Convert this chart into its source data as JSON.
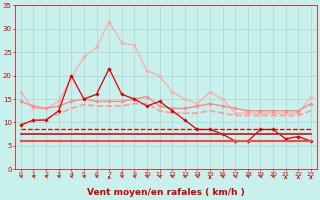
{
  "background_color": "#c8f0ec",
  "grid_color": "#aed4d0",
  "xlabel": "Vent moyen/en rafales ( km/h )",
  "xlabel_color": "#cc0000",
  "xlabel_fontsize": 6.5,
  "tick_color": "#cc0000",
  "xlim": [
    -0.5,
    23.5
  ],
  "ylim": [
    0,
    35
  ],
  "yticks": [
    0,
    5,
    10,
    15,
    20,
    25,
    30,
    35
  ],
  "xticks": [
    0,
    1,
    2,
    3,
    4,
    5,
    6,
    7,
    8,
    9,
    10,
    11,
    12,
    13,
    14,
    15,
    16,
    17,
    18,
    19,
    20,
    21,
    22,
    23
  ],
  "series": [
    {
      "x": [
        0,
        1,
        2,
        3,
        4,
        5,
        6,
        7,
        8,
        9,
        10,
        11,
        12,
        13,
        14,
        15,
        16,
        17,
        18,
        19,
        20,
        21,
        22,
        23
      ],
      "y": [
        16.5,
        13.0,
        13.0,
        14.5,
        19.5,
        24.0,
        26.0,
        31.5,
        27.0,
        26.5,
        21.0,
        20.0,
        16.5,
        15.0,
        14.0,
        16.5,
        15.0,
        12.0,
        12.0,
        12.0,
        12.0,
        12.0,
        12.0,
        15.5
      ],
      "color": "#ffaaaa",
      "linewidth": 0.9,
      "marker": "D",
      "markersize": 1.8,
      "linestyle": "-"
    },
    {
      "x": [
        0,
        1,
        2,
        3,
        4,
        5,
        6,
        7,
        8,
        9,
        10,
        11,
        12,
        13,
        14,
        15,
        16,
        17,
        18,
        19,
        20,
        21,
        22,
        23
      ],
      "y": [
        14.5,
        13.5,
        13.0,
        13.5,
        14.5,
        15.0,
        14.5,
        14.5,
        14.5,
        15.0,
        15.5,
        13.5,
        13.0,
        13.0,
        13.5,
        14.0,
        13.5,
        13.0,
        12.5,
        12.5,
        12.5,
        12.5,
        12.5,
        14.0
      ],
      "color": "#ff8888",
      "linewidth": 1.0,
      "marker": "D",
      "markersize": 1.8,
      "linestyle": "-"
    },
    {
      "x": [
        0,
        1,
        2,
        3,
        4,
        5,
        6,
        7,
        8,
        9,
        10,
        11,
        12,
        13,
        14,
        15,
        16,
        17,
        18,
        19,
        20,
        21,
        22,
        23
      ],
      "y": [
        9.5,
        10.2,
        10.8,
        11.8,
        13.0,
        13.8,
        13.5,
        13.5,
        13.5,
        14.0,
        14.0,
        12.5,
        12.0,
        12.0,
        12.0,
        12.5,
        12.0,
        11.5,
        11.5,
        11.5,
        11.5,
        11.5,
        11.5,
        12.5
      ],
      "color": "#ff9999",
      "linewidth": 1.2,
      "marker": null,
      "markersize": 0,
      "linestyle": "--"
    },
    {
      "x": [
        0,
        1,
        2,
        3,
        4,
        5,
        6,
        7,
        8,
        9,
        10,
        11,
        12,
        13,
        14,
        15,
        16,
        17,
        18,
        19,
        20,
        21,
        22,
        23
      ],
      "y": [
        9.5,
        10.5,
        10.5,
        12.5,
        20.0,
        15.0,
        16.0,
        21.5,
        16.0,
        15.0,
        13.5,
        14.5,
        12.5,
        10.5,
        8.5,
        8.5,
        7.5,
        6.0,
        6.0,
        8.5,
        8.5,
        6.5,
        7.0,
        6.0
      ],
      "color": "#dd0000",
      "linewidth": 0.9,
      "marker": "D",
      "markersize": 1.8,
      "linestyle": "-"
    },
    {
      "x": [
        0,
        1,
        2,
        3,
        4,
        5,
        6,
        7,
        8,
        9,
        10,
        11,
        12,
        13,
        14,
        15,
        16,
        17,
        18,
        19,
        20,
        21,
        22,
        23
      ],
      "y": [
        8.5,
        8.5,
        8.5,
        8.5,
        8.5,
        8.5,
        8.5,
        8.5,
        8.5,
        8.5,
        8.5,
        8.5,
        8.5,
        8.5,
        8.5,
        8.5,
        8.5,
        8.5,
        8.5,
        8.5,
        8.5,
        8.5,
        8.5,
        8.5
      ],
      "color": "#cc0000",
      "linewidth": 0.9,
      "marker": null,
      "markersize": 0,
      "linestyle": "--"
    },
    {
      "x": [
        0,
        1,
        2,
        3,
        4,
        5,
        6,
        7,
        8,
        9,
        10,
        11,
        12,
        13,
        14,
        15,
        16,
        17,
        18,
        19,
        20,
        21,
        22,
        23
      ],
      "y": [
        7.5,
        7.5,
        7.5,
        7.5,
        7.5,
        7.5,
        7.5,
        7.5,
        7.5,
        7.5,
        7.5,
        7.5,
        7.5,
        7.5,
        7.5,
        7.5,
        7.5,
        7.5,
        7.5,
        7.5,
        7.5,
        7.5,
        7.5,
        7.5
      ],
      "color": "#cc2222",
      "linewidth": 1.3,
      "marker": null,
      "markersize": 0,
      "linestyle": "-"
    },
    {
      "x": [
        0,
        1,
        2,
        3,
        4,
        5,
        6,
        7,
        8,
        9,
        10,
        11,
        12,
        13,
        14,
        15,
        16,
        17,
        18,
        19,
        20,
        21,
        22,
        23
      ],
      "y": [
        6.0,
        6.0,
        6.0,
        6.0,
        6.0,
        6.0,
        6.0,
        6.0,
        6.0,
        6.0,
        6.0,
        6.0,
        6.0,
        6.0,
        6.0,
        6.0,
        6.0,
        6.0,
        6.0,
        6.0,
        6.0,
        6.0,
        6.0,
        6.0
      ],
      "color": "#ff4444",
      "linewidth": 1.5,
      "marker": null,
      "markersize": 0,
      "linestyle": "-"
    }
  ],
  "arrow_color": "#cc0000",
  "arrow_angles": [
    225,
    225,
    225,
    225,
    225,
    225,
    225,
    270,
    225,
    225,
    225,
    225,
    225,
    225,
    225,
    270,
    225,
    225,
    225,
    225,
    225,
    270,
    270,
    270
  ]
}
